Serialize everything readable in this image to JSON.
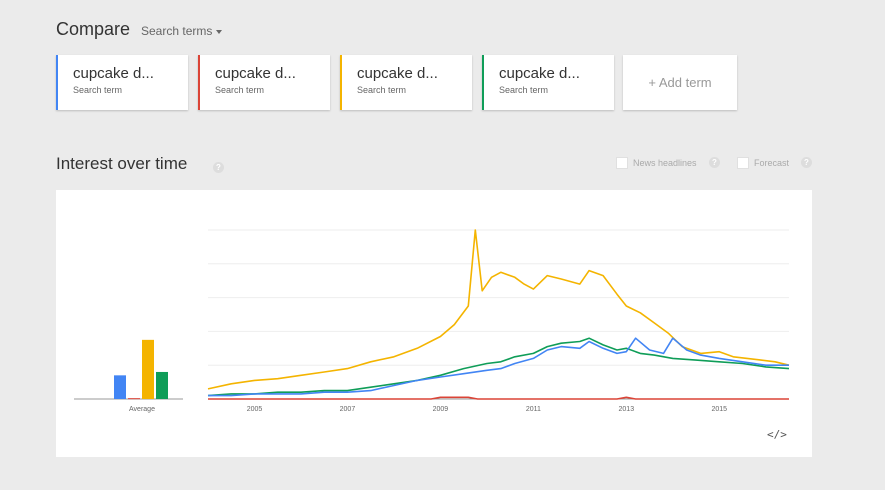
{
  "header": {
    "title": "Compare",
    "search_terms_label": "Search terms"
  },
  "terms": [
    {
      "label": "cupcake d...",
      "sub": "Search term",
      "color": "#4285f4"
    },
    {
      "label": "cupcake d...",
      "sub": "Search term",
      "color": "#db4437"
    },
    {
      "label": "cupcake d...",
      "sub": "Search term",
      "color": "#f4b400"
    },
    {
      "label": "cupcake d...",
      "sub": "Search term",
      "color": "#0f9d58"
    }
  ],
  "add_term_label": "+ Add term",
  "interest": {
    "title": "Interest over time",
    "help_glyph": "?",
    "news_headlines_label": "News headlines",
    "forecast_label": "Forecast"
  },
  "embed_label": "</>",
  "chart_data": {
    "type": "line",
    "x_tick_labels": [
      "2005",
      "2007",
      "2009",
      "2011",
      "2013",
      "2015"
    ],
    "x_range": [
      2004.0,
      2016.5
    ],
    "y_range": [
      0,
      100
    ],
    "grid": true,
    "average_label": "Average",
    "averages": [
      {
        "color": "#4285f4",
        "value": 14
      },
      {
        "color": "#db4437",
        "value": 0.5
      },
      {
        "color": "#f4b400",
        "value": 35
      },
      {
        "color": "#0f9d58",
        "value": 16
      }
    ],
    "series": [
      {
        "color": "#f4b400",
        "points": [
          [
            2004.0,
            6
          ],
          [
            2004.5,
            9
          ],
          [
            2005.0,
            11
          ],
          [
            2005.5,
            12
          ],
          [
            2006.0,
            14
          ],
          [
            2006.5,
            16
          ],
          [
            2007.0,
            18
          ],
          [
            2007.5,
            22
          ],
          [
            2008.0,
            25
          ],
          [
            2008.5,
            30
          ],
          [
            2009.0,
            37
          ],
          [
            2009.3,
            44
          ],
          [
            2009.6,
            55
          ],
          [
            2009.75,
            100
          ],
          [
            2009.9,
            64
          ],
          [
            2010.1,
            72
          ],
          [
            2010.3,
            75
          ],
          [
            2010.6,
            72
          ],
          [
            2010.8,
            68
          ],
          [
            2011.0,
            65
          ],
          [
            2011.3,
            73
          ],
          [
            2011.6,
            71
          ],
          [
            2012.0,
            68
          ],
          [
            2012.2,
            76
          ],
          [
            2012.5,
            73
          ],
          [
            2012.8,
            62
          ],
          [
            2013.0,
            55
          ],
          [
            2013.3,
            51
          ],
          [
            2013.6,
            45
          ],
          [
            2013.9,
            39
          ],
          [
            2014.2,
            31
          ],
          [
            2014.6,
            27
          ],
          [
            2015.0,
            28
          ],
          [
            2015.3,
            25
          ],
          [
            2015.6,
            24
          ],
          [
            2015.9,
            23
          ],
          [
            2016.2,
            22
          ],
          [
            2016.5,
            20
          ]
        ]
      },
      {
        "color": "#0f9d58",
        "points": [
          [
            2004.0,
            2
          ],
          [
            2004.5,
            3
          ],
          [
            2005.0,
            3
          ],
          [
            2005.5,
            4
          ],
          [
            2006.0,
            4
          ],
          [
            2006.5,
            5
          ],
          [
            2007.0,
            5
          ],
          [
            2007.5,
            7
          ],
          [
            2008.0,
            9
          ],
          [
            2008.5,
            11
          ],
          [
            2009.0,
            14
          ],
          [
            2009.5,
            18
          ],
          [
            2010.0,
            21
          ],
          [
            2010.3,
            22
          ],
          [
            2010.6,
            25
          ],
          [
            2011.0,
            27
          ],
          [
            2011.3,
            31
          ],
          [
            2011.6,
            33
          ],
          [
            2012.0,
            34
          ],
          [
            2012.2,
            36
          ],
          [
            2012.5,
            32
          ],
          [
            2012.8,
            29
          ],
          [
            2013.0,
            30
          ],
          [
            2013.3,
            27
          ],
          [
            2013.6,
            26
          ],
          [
            2014.0,
            24
          ],
          [
            2014.5,
            23
          ],
          [
            2015.0,
            22
          ],
          [
            2015.5,
            21
          ],
          [
            2016.0,
            19
          ],
          [
            2016.5,
            18
          ]
        ]
      },
      {
        "color": "#4285f4",
        "points": [
          [
            2004.0,
            2
          ],
          [
            2004.5,
            2
          ],
          [
            2005.0,
            3
          ],
          [
            2005.5,
            3
          ],
          [
            2006.0,
            3
          ],
          [
            2006.5,
            4
          ],
          [
            2007.0,
            4
          ],
          [
            2007.5,
            5
          ],
          [
            2008.0,
            8
          ],
          [
            2008.5,
            11
          ],
          [
            2009.0,
            13
          ],
          [
            2009.5,
            15
          ],
          [
            2010.0,
            17
          ],
          [
            2010.3,
            18
          ],
          [
            2010.6,
            21
          ],
          [
            2011.0,
            24
          ],
          [
            2011.3,
            29
          ],
          [
            2011.6,
            31
          ],
          [
            2012.0,
            30
          ],
          [
            2012.2,
            34
          ],
          [
            2012.5,
            30
          ],
          [
            2012.8,
            27
          ],
          [
            2013.0,
            28
          ],
          [
            2013.2,
            36
          ],
          [
            2013.5,
            29
          ],
          [
            2013.8,
            27
          ],
          [
            2014.0,
            36
          ],
          [
            2014.3,
            29
          ],
          [
            2014.6,
            26
          ],
          [
            2015.0,
            24
          ],
          [
            2015.5,
            22
          ],
          [
            2016.0,
            20
          ],
          [
            2016.5,
            20
          ]
        ]
      },
      {
        "color": "#db4437",
        "points": [
          [
            2004.0,
            0
          ],
          [
            2008.8,
            0
          ],
          [
            2009.0,
            1
          ],
          [
            2009.6,
            1
          ],
          [
            2009.8,
            0
          ],
          [
            2012.8,
            0
          ],
          [
            2013.0,
            1
          ],
          [
            2013.2,
            0
          ],
          [
            2016.5,
            0
          ]
        ]
      }
    ]
  }
}
